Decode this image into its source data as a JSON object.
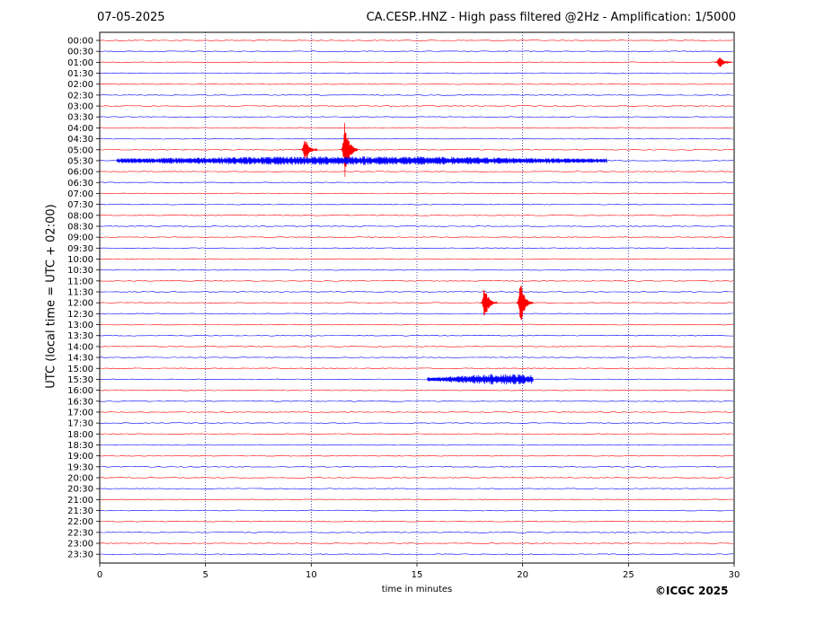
{
  "header": {
    "date": "07-05-2025",
    "title": "CA.CESP..HNZ - High pass filtered @2Hz - Amplification: 1/5000"
  },
  "footer": {
    "copyright": "©ICGC 2025"
  },
  "chart_data": {
    "type": "line",
    "xlabel": "time in minutes",
    "ylabel": "UTC (local time = UTC + 02:00)",
    "xlim": [
      0,
      30
    ],
    "x_ticks": [
      0,
      5,
      10,
      15,
      20,
      25,
      30
    ],
    "vertical_grid": true,
    "trace_colors": [
      "#ff0000",
      "#0000ff"
    ],
    "rows": [
      "00:00",
      "00:30",
      "01:00",
      "01:30",
      "02:00",
      "02:30",
      "03:00",
      "03:30",
      "04:00",
      "04:30",
      "05:00",
      "05:30",
      "06:00",
      "06:30",
      "07:00",
      "07:30",
      "08:00",
      "08:30",
      "09:00",
      "09:30",
      "10:00",
      "10:30",
      "11:00",
      "11:30",
      "12:00",
      "12:30",
      "13:00",
      "13:30",
      "14:00",
      "14:30",
      "15:00",
      "15:30",
      "16:00",
      "16:30",
      "17:00",
      "17:30",
      "18:00",
      "18:30",
      "19:00",
      "19:30",
      "20:00",
      "20:30",
      "21:00",
      "21:30",
      "22:00",
      "22:30",
      "23:00",
      "23:30"
    ],
    "events": [
      {
        "row": "01:00",
        "minute": 29.3,
        "amplitude": 0.6
      },
      {
        "row": "05:00",
        "minute": 9.7,
        "amplitude": 1.2
      },
      {
        "row": "05:00",
        "minute": 11.6,
        "amplitude": 3.0
      },
      {
        "row": "05:30",
        "minute": 11.7,
        "amplitude": 0.4,
        "start": 0.8,
        "end": 24.0
      },
      {
        "row": "12:00",
        "minute": 18.2,
        "amplitude": 1.6
      },
      {
        "row": "12:00",
        "minute": 19.9,
        "amplitude": 2.0
      },
      {
        "row": "15:30",
        "minute": 19.1,
        "amplitude": 0.5,
        "start": 15.5,
        "end": 20.5
      }
    ]
  }
}
